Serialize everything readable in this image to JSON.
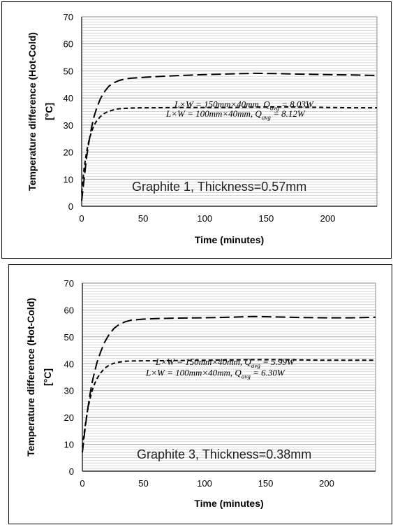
{
  "chart_data": [
    {
      "type": "line",
      "title": "",
      "xlabel": "Time (minutes)",
      "ylabel_line1": "Temperature difference (Hot-Cold)",
      "ylabel_line2": "[°C]",
      "xlim": [
        0,
        240
      ],
      "ylim": [
        0,
        70
      ],
      "xticks": [
        0,
        50,
        100,
        150,
        200
      ],
      "yticks": [
        0,
        10,
        20,
        30,
        40,
        50,
        60,
        70
      ],
      "grid": "horizontal",
      "annotation": "Graphite 1, Thickness=0.57mm",
      "series": [
        {
          "name": "L×W = 150mm×40mm, Q_avg = 8.03W",
          "label_pre": "L×W = 150mm×40mm, Q",
          "label_sub": "avg",
          "label_post": " = 8.03W",
          "dash": "long",
          "x": [
            0,
            2,
            4,
            6,
            8,
            10,
            12,
            15,
            18,
            22,
            26,
            30,
            35,
            40,
            50,
            60,
            80,
            100,
            120,
            140,
            160,
            180,
            200,
            220,
            240
          ],
          "y": [
            2,
            10,
            18,
            24,
            29,
            33,
            36,
            39.5,
            42,
            44.3,
            45.6,
            46.4,
            47,
            47.3,
            47.6,
            47.9,
            48.3,
            48.6,
            48.9,
            49.1,
            49,
            48.8,
            48.6,
            48.5,
            48.3
          ]
        },
        {
          "name": "L×W = 100mm×40mm, Q_avg = 8.12W",
          "label_pre": "L×W = 100mm×40mm, Q",
          "label_sub": "avg",
          "label_post": " = 8.12W",
          "dash": "short",
          "x": [
            0,
            2,
            4,
            6,
            8,
            10,
            12,
            15,
            18,
            22,
            26,
            30,
            40,
            50,
            60,
            80,
            100,
            120,
            140,
            160,
            180,
            200,
            220,
            240
          ],
          "y": [
            5,
            14,
            20,
            24.5,
            27.5,
            29.8,
            31.4,
            33,
            34.2,
            35.1,
            35.6,
            36,
            36.3,
            36.4,
            36.4,
            36.5,
            36.5,
            36.5,
            36.6,
            36.7,
            36.6,
            36.5,
            36.4,
            36.4
          ]
        }
      ]
    },
    {
      "type": "line",
      "title": "",
      "xlabel": "Time (minutes)",
      "ylabel_line1": "Temperature difference (Hot-Cold)",
      "ylabel_line2": "[°C]",
      "xlim": [
        0,
        240
      ],
      "ylim": [
        0,
        70
      ],
      "xticks": [
        0,
        50,
        100,
        150,
        200
      ],
      "yticks": [
        0,
        10,
        20,
        30,
        40,
        50,
        60,
        70
      ],
      "grid": "horizontal",
      "annotation": "Graphite 3, Thickness=0.38mm",
      "series": [
        {
          "name": "L×W = 150mm×40mm, Q_avg = 5.99W",
          "label_pre": "L×W = 150mm×40mm, Q",
          "label_sub": "avg",
          "label_post": " = 5.99W",
          "dash": "long",
          "x": [
            0,
            2,
            4,
            6,
            8,
            10,
            12,
            15,
            18,
            22,
            26,
            30,
            35,
            40,
            50,
            60,
            80,
            100,
            120,
            140,
            160,
            180,
            200,
            220,
            240
          ],
          "y": [
            7,
            15,
            22,
            28,
            33,
            37,
            40.5,
            44.5,
            47.8,
            51,
            53.2,
            54.6,
            55.6,
            56.2,
            56.6,
            56.8,
            57,
            57.1,
            57.3,
            57.6,
            57.4,
            57.2,
            57.1,
            57.1,
            57.3
          ]
        },
        {
          "name": "L×W = 100mm×40mm, Q_avg = 6.30W",
          "label_pre": "L×W = 100mm×40mm, Q",
          "label_sub": "avg",
          "label_post": " = 6.30W",
          "dash": "short",
          "x": [
            0,
            2,
            4,
            6,
            8,
            10,
            12,
            15,
            18,
            22,
            26,
            30,
            35,
            40,
            50,
            60,
            80,
            100,
            120,
            140,
            160,
            180,
            200,
            220,
            240
          ],
          "y": [
            9,
            16,
            22,
            26.5,
            30,
            32.5,
            34.5,
            36.6,
            38.2,
            39.5,
            40.2,
            40.6,
            40.9,
            41,
            41.1,
            41.1,
            41.2,
            41.3,
            41.4,
            41.5,
            41.5,
            41.4,
            41.3,
            41.3,
            41.3
          ]
        }
      ]
    }
  ]
}
